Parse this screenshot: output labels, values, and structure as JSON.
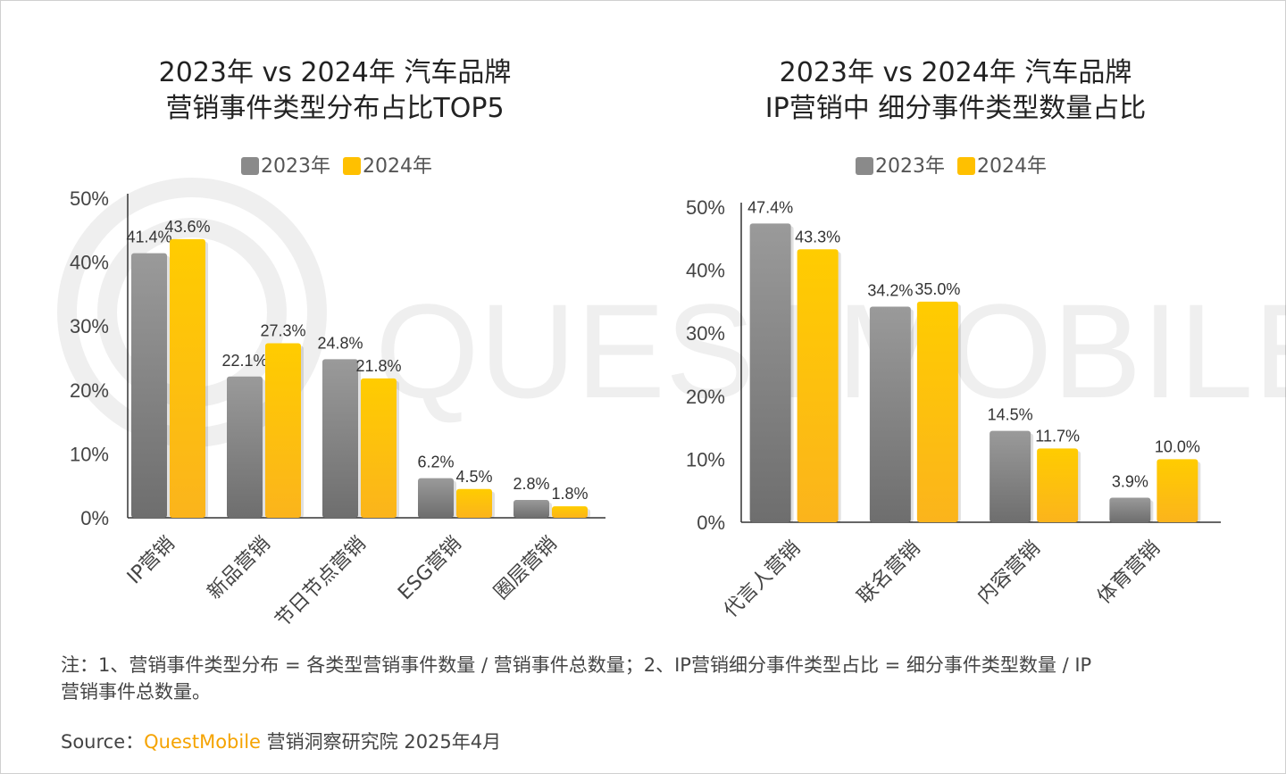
{
  "colors": {
    "series_2023": "#8a8a8a",
    "series_2024": "#ffc000",
    "brand": "#f5a300"
  },
  "watermark": "QUESTMOBILE",
  "chart_data": [
    {
      "type": "bar",
      "title_line1": "2023年 vs 2024年 汽车品牌",
      "title_line2": "营销事件类型分布占比TOP5",
      "categories": [
        "IP营销",
        "新品营销",
        "节日节点营销",
        "ESG营销",
        "圈层营销"
      ],
      "series": [
        {
          "name": "2023年",
          "values": [
            41.4,
            22.1,
            24.8,
            6.2,
            2.8
          ],
          "labels": [
            "41.4%",
            "22.1%",
            "24.8%",
            "6.2%",
            "2.8%"
          ]
        },
        {
          "name": "2024年",
          "values": [
            43.6,
            27.3,
            21.8,
            4.5,
            1.8
          ],
          "labels": [
            "43.6%",
            "27.3%",
            "21.8%",
            "4.5%",
            "1.8%"
          ]
        }
      ],
      "ylim": [
        0,
        50
      ],
      "yticks": [
        "0%",
        "10%",
        "20%",
        "30%",
        "40%",
        "50%"
      ],
      "legend": "top",
      "grid": false
    },
    {
      "type": "bar",
      "title_line1": "2023年 vs 2024年 汽车品牌",
      "title_line2": "IP营销中 细分事件类型数量占比",
      "categories": [
        "代言人营销",
        "联名营销",
        "内容营销",
        "体育营销"
      ],
      "series": [
        {
          "name": "2023年",
          "values": [
            47.4,
            34.2,
            14.5,
            3.9
          ],
          "labels": [
            "47.4%",
            "34.2%",
            "14.5%",
            "3.9%"
          ]
        },
        {
          "name": "2024年",
          "values": [
            43.3,
            35.0,
            11.7,
            10.0
          ],
          "labels": [
            "43.3%",
            "35.0%",
            "11.7%",
            "10.0%"
          ]
        }
      ],
      "ylim": [
        0,
        50
      ],
      "yticks": [
        "0%",
        "10%",
        "20%",
        "30%",
        "40%",
        "50%"
      ],
      "legend": "top",
      "grid": false
    }
  ],
  "note_line1": "注：1、营销事件类型分布 = 各类型营销事件数量 / 营销事件总数量；2、IP营销细分事件类型占比 = 细分事件类型数量 / IP",
  "note_line2": "营销事件总数量。",
  "source": {
    "prefix": "Source：",
    "brand": "QuestMobile",
    "suffix": "营销洞察研究院 2025年4月"
  }
}
